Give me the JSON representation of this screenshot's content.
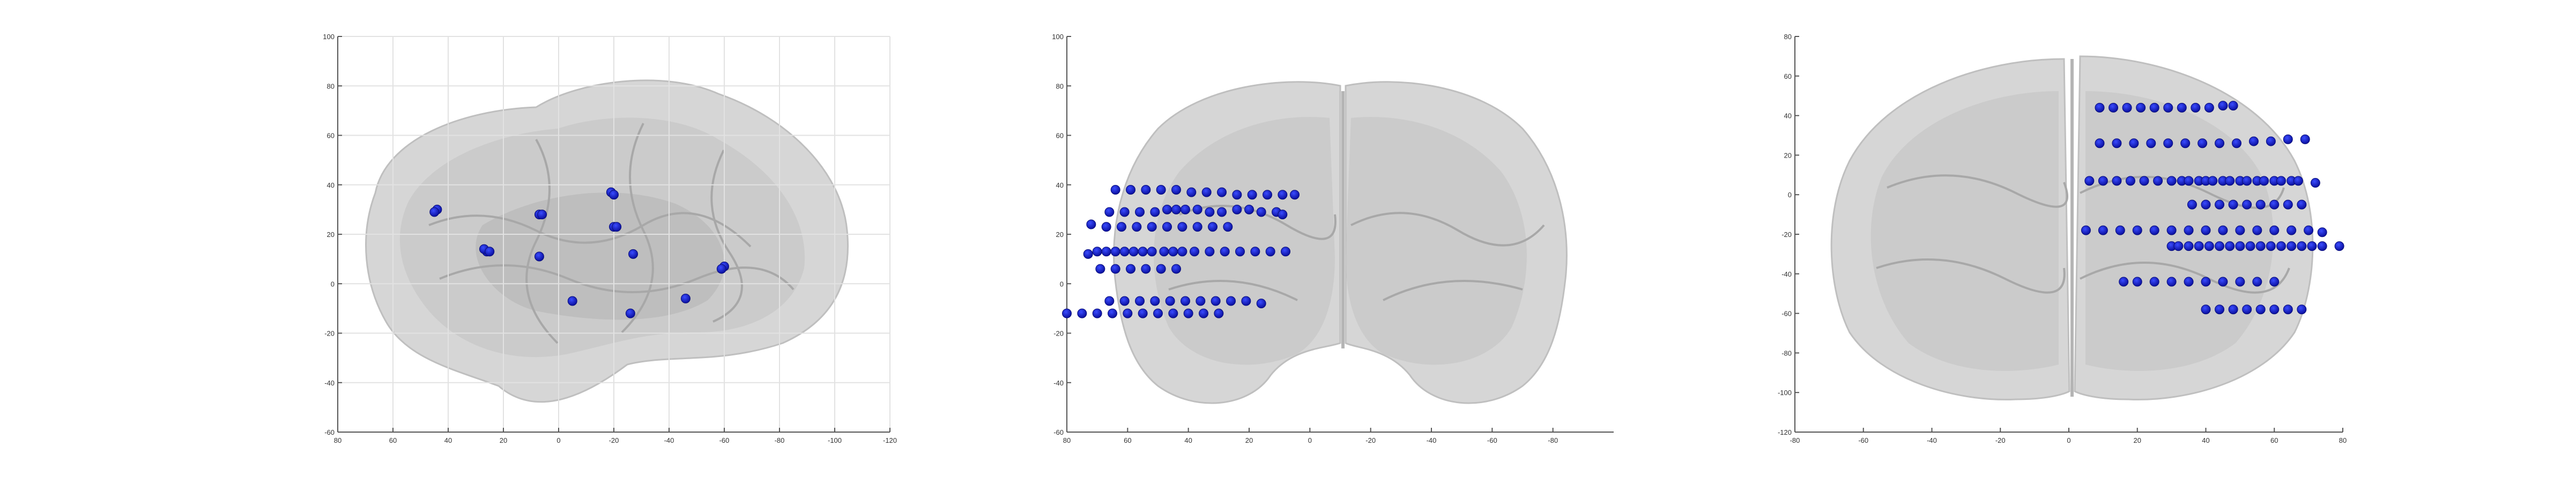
{
  "chart_data": [
    {
      "type": "scatter",
      "view": "sagittal",
      "xlim": [
        80,
        -120
      ],
      "ylim": [
        -60,
        100
      ],
      "xticks": [
        "80",
        "60",
        "40",
        "20",
        "0",
        "-20",
        "-40",
        "-60",
        "-80",
        "-100",
        "-120"
      ],
      "yticks": [
        "100",
        "80",
        "60",
        "40",
        "20",
        "0",
        "-20",
        "-40",
        "-60"
      ],
      "grid": true,
      "points": [
        {
          "x": 44,
          "y": 30
        },
        {
          "x": 45,
          "y": 29
        },
        {
          "x": 26,
          "y": 13
        },
        {
          "x": 27,
          "y": 14
        },
        {
          "x": 25,
          "y": 13
        },
        {
          "x": 7,
          "y": 28
        },
        {
          "x": 6,
          "y": 28
        },
        {
          "x": 7,
          "y": 11
        },
        {
          "x": -19,
          "y": 37
        },
        {
          "x": -20,
          "y": 36
        },
        {
          "x": -20,
          "y": 23
        },
        {
          "x": -21,
          "y": 23
        },
        {
          "x": -27,
          "y": 12
        },
        {
          "x": -5,
          "y": -7
        },
        {
          "x": -26,
          "y": -12
        },
        {
          "x": -46,
          "y": -6
        },
        {
          "x": -60,
          "y": 7
        },
        {
          "x": -59,
          "y": 6
        }
      ]
    },
    {
      "type": "scatter",
      "view": "coronal",
      "xlim": [
        80,
        -100
      ],
      "ylim": [
        -60,
        100
      ],
      "xticks": [
        "80",
        "60",
        "40",
        "20",
        "0",
        "-20",
        "-40",
        "-60",
        "-80"
      ],
      "yticks": [
        "100",
        "80",
        "60",
        "40",
        "20",
        "0",
        "-20",
        "-40",
        "-60"
      ],
      "grid": false,
      "points": [
        {
          "x": 64,
          "y": 38
        },
        {
          "x": 59,
          "y": 38
        },
        {
          "x": 54,
          "y": 38
        },
        {
          "x": 49,
          "y": 38
        },
        {
          "x": 44,
          "y": 38
        },
        {
          "x": 39,
          "y": 37
        },
        {
          "x": 34,
          "y": 37
        },
        {
          "x": 29,
          "y": 37
        },
        {
          "x": 24,
          "y": 36
        },
        {
          "x": 19,
          "y": 36
        },
        {
          "x": 14,
          "y": 36
        },
        {
          "x": 9,
          "y": 36
        },
        {
          "x": 5,
          "y": 36
        },
        {
          "x": 66,
          "y": 29
        },
        {
          "x": 61,
          "y": 29
        },
        {
          "x": 56,
          "y": 29
        },
        {
          "x": 51,
          "y": 29
        },
        {
          "x": 47,
          "y": 30
        },
        {
          "x": 44,
          "y": 30
        },
        {
          "x": 41,
          "y": 30
        },
        {
          "x": 37,
          "y": 30
        },
        {
          "x": 33,
          "y": 29
        },
        {
          "x": 29,
          "y": 29
        },
        {
          "x": 24,
          "y": 30
        },
        {
          "x": 20,
          "y": 30
        },
        {
          "x": 16,
          "y": 29
        },
        {
          "x": 11,
          "y": 29
        },
        {
          "x": 9,
          "y": 28
        },
        {
          "x": 72,
          "y": 24
        },
        {
          "x": 67,
          "y": 23
        },
        {
          "x": 62,
          "y": 23
        },
        {
          "x": 57,
          "y": 23
        },
        {
          "x": 52,
          "y": 23
        },
        {
          "x": 47,
          "y": 23
        },
        {
          "x": 42,
          "y": 23
        },
        {
          "x": 37,
          "y": 23
        },
        {
          "x": 32,
          "y": 23
        },
        {
          "x": 27,
          "y": 23
        },
        {
          "x": 73,
          "y": 12
        },
        {
          "x": 70,
          "y": 13
        },
        {
          "x": 67,
          "y": 13
        },
        {
          "x": 64,
          "y": 13
        },
        {
          "x": 61,
          "y": 13
        },
        {
          "x": 58,
          "y": 13
        },
        {
          "x": 55,
          "y": 13
        },
        {
          "x": 52,
          "y": 13
        },
        {
          "x": 48,
          "y": 13
        },
        {
          "x": 45,
          "y": 13
        },
        {
          "x": 42,
          "y": 13
        },
        {
          "x": 38,
          "y": 13
        },
        {
          "x": 33,
          "y": 13
        },
        {
          "x": 28,
          "y": 13
        },
        {
          "x": 23,
          "y": 13
        },
        {
          "x": 18,
          "y": 13
        },
        {
          "x": 13,
          "y": 13
        },
        {
          "x": 8,
          "y": 13
        },
        {
          "x": 69,
          "y": 6
        },
        {
          "x": 64,
          "y": 6
        },
        {
          "x": 59,
          "y": 6
        },
        {
          "x": 54,
          "y": 6
        },
        {
          "x": 49,
          "y": 6
        },
        {
          "x": 44,
          "y": 6
        },
        {
          "x": 66,
          "y": -7
        },
        {
          "x": 61,
          "y": -7
        },
        {
          "x": 56,
          "y": -7
        },
        {
          "x": 51,
          "y": -7
        },
        {
          "x": 46,
          "y": -7
        },
        {
          "x": 41,
          "y": -7
        },
        {
          "x": 36,
          "y": -7
        },
        {
          "x": 31,
          "y": -7
        },
        {
          "x": 26,
          "y": -7
        },
        {
          "x": 21,
          "y": -7
        },
        {
          "x": 16,
          "y": -8
        },
        {
          "x": 80,
          "y": -12
        },
        {
          "x": 75,
          "y": -12
        },
        {
          "x": 70,
          "y": -12
        },
        {
          "x": 65,
          "y": -12
        },
        {
          "x": 60,
          "y": -12
        },
        {
          "x": 55,
          "y": -12
        },
        {
          "x": 50,
          "y": -12
        },
        {
          "x": 45,
          "y": -12
        },
        {
          "x": 40,
          "y": -12
        },
        {
          "x": 35,
          "y": -12
        },
        {
          "x": 30,
          "y": -12
        }
      ]
    },
    {
      "type": "scatter",
      "view": "axial",
      "xlim": [
        -80,
        80
      ],
      "ylim": [
        -120,
        80
      ],
      "xticks": [
        "-80",
        "-60",
        "-40",
        "-20",
        "0",
        "20",
        "40",
        "60",
        "80"
      ],
      "yticks": [
        "80",
        "60",
        "40",
        "20",
        "0",
        "-20",
        "-40",
        "-60",
        "-80",
        "-100",
        "-120"
      ],
      "grid": false,
      "points": [
        {
          "x": 9,
          "y": 44
        },
        {
          "x": 13,
          "y": 44
        },
        {
          "x": 17,
          "y": 44
        },
        {
          "x": 21,
          "y": 44
        },
        {
          "x": 25,
          "y": 44
        },
        {
          "x": 29,
          "y": 44
        },
        {
          "x": 33,
          "y": 44
        },
        {
          "x": 37,
          "y": 44
        },
        {
          "x": 41,
          "y": 44
        },
        {
          "x": 45,
          "y": 45
        },
        {
          "x": 48,
          "y": 45
        },
        {
          "x": 9,
          "y": 26
        },
        {
          "x": 14,
          "y": 26
        },
        {
          "x": 19,
          "y": 26
        },
        {
          "x": 24,
          "y": 26
        },
        {
          "x": 29,
          "y": 26
        },
        {
          "x": 34,
          "y": 26
        },
        {
          "x": 39,
          "y": 26
        },
        {
          "x": 44,
          "y": 26
        },
        {
          "x": 49,
          "y": 26
        },
        {
          "x": 54,
          "y": 27
        },
        {
          "x": 59,
          "y": 27
        },
        {
          "x": 64,
          "y": 28
        },
        {
          "x": 69,
          "y": 28
        },
        {
          "x": 6,
          "y": 7
        },
        {
          "x": 10,
          "y": 7
        },
        {
          "x": 14,
          "y": 7
        },
        {
          "x": 18,
          "y": 7
        },
        {
          "x": 22,
          "y": 7
        },
        {
          "x": 26,
          "y": 7
        },
        {
          "x": 30,
          "y": 7
        },
        {
          "x": 33,
          "y": 7
        },
        {
          "x": 35,
          "y": 7
        },
        {
          "x": 38,
          "y": 7
        },
        {
          "x": 40,
          "y": 7
        },
        {
          "x": 42,
          "y": 7
        },
        {
          "x": 45,
          "y": 7
        },
        {
          "x": 47,
          "y": 7
        },
        {
          "x": 50,
          "y": 7
        },
        {
          "x": 52,
          "y": 7
        },
        {
          "x": 55,
          "y": 7
        },
        {
          "x": 57,
          "y": 7
        },
        {
          "x": 60,
          "y": 7
        },
        {
          "x": 62,
          "y": 7
        },
        {
          "x": 65,
          "y": 7
        },
        {
          "x": 67,
          "y": 7
        },
        {
          "x": 72,
          "y": 6
        },
        {
          "x": 36,
          "y": -5
        },
        {
          "x": 40,
          "y": -5
        },
        {
          "x": 44,
          "y": -5
        },
        {
          "x": 48,
          "y": -5
        },
        {
          "x": 52,
          "y": -5
        },
        {
          "x": 56,
          "y": -5
        },
        {
          "x": 60,
          "y": -5
        },
        {
          "x": 64,
          "y": -5
        },
        {
          "x": 68,
          "y": -5
        },
        {
          "x": 5,
          "y": -18
        },
        {
          "x": 10,
          "y": -18
        },
        {
          "x": 15,
          "y": -18
        },
        {
          "x": 20,
          "y": -18
        },
        {
          "x": 25,
          "y": -18
        },
        {
          "x": 30,
          "y": -18
        },
        {
          "x": 35,
          "y": -18
        },
        {
          "x": 40,
          "y": -18
        },
        {
          "x": 45,
          "y": -18
        },
        {
          "x": 50,
          "y": -18
        },
        {
          "x": 55,
          "y": -18
        },
        {
          "x": 60,
          "y": -18
        },
        {
          "x": 65,
          "y": -18
        },
        {
          "x": 70,
          "y": -18
        },
        {
          "x": 74,
          "y": -19
        },
        {
          "x": 30,
          "y": -26
        },
        {
          "x": 32,
          "y": -26
        },
        {
          "x": 35,
          "y": -26
        },
        {
          "x": 38,
          "y": -26
        },
        {
          "x": 41,
          "y": -26
        },
        {
          "x": 44,
          "y": -26
        },
        {
          "x": 47,
          "y": -26
        },
        {
          "x": 50,
          "y": -26
        },
        {
          "x": 53,
          "y": -26
        },
        {
          "x": 56,
          "y": -26
        },
        {
          "x": 59,
          "y": -26
        },
        {
          "x": 62,
          "y": -26
        },
        {
          "x": 65,
          "y": -26
        },
        {
          "x": 68,
          "y": -26
        },
        {
          "x": 71,
          "y": -26
        },
        {
          "x": 74,
          "y": -26
        },
        {
          "x": 79,
          "y": -26
        },
        {
          "x": 16,
          "y": -44
        },
        {
          "x": 20,
          "y": -44
        },
        {
          "x": 25,
          "y": -44
        },
        {
          "x": 30,
          "y": -44
        },
        {
          "x": 35,
          "y": -44
        },
        {
          "x": 40,
          "y": -44
        },
        {
          "x": 45,
          "y": -44
        },
        {
          "x": 50,
          "y": -44
        },
        {
          "x": 55,
          "y": -44
        },
        {
          "x": 60,
          "y": -44
        },
        {
          "x": 40,
          "y": -58
        },
        {
          "x": 44,
          "y": -58
        },
        {
          "x": 48,
          "y": -58
        },
        {
          "x": 52,
          "y": -58
        },
        {
          "x": 56,
          "y": -58
        },
        {
          "x": 60,
          "y": -58
        },
        {
          "x": 64,
          "y": -58
        },
        {
          "x": 68,
          "y": -58
        }
      ]
    }
  ]
}
